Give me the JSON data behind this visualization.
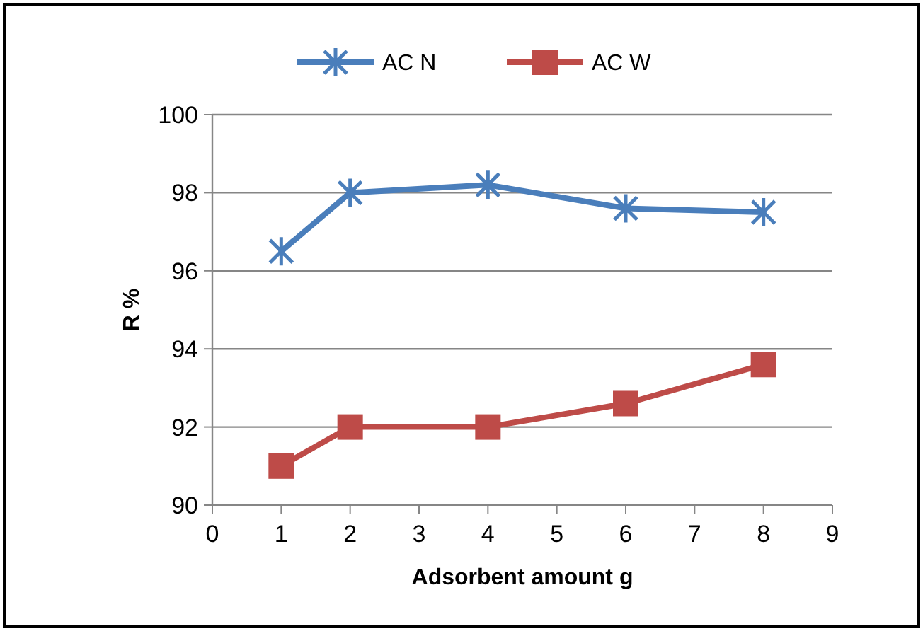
{
  "chart_data": {
    "type": "line",
    "x": [
      1,
      2,
      4,
      6,
      8
    ],
    "xlabel": "Adsorbent amount g",
    "ylabel": "R %",
    "xlim": [
      0,
      9
    ],
    "xticks": [
      0,
      1,
      2,
      3,
      4,
      5,
      6,
      7,
      8,
      9
    ],
    "ylim": [
      90,
      100
    ],
    "yticks": [
      90,
      92,
      94,
      96,
      98,
      100
    ],
    "grid": "y",
    "legend": "top",
    "series": [
      {
        "name": "AC N",
        "color": "#4a7ebb",
        "marker": "cross",
        "values": [
          96.5,
          98.0,
          98.2,
          97.6,
          97.5
        ]
      },
      {
        "name": "AC W",
        "color": "#be4b48",
        "marker": "square",
        "values": [
          91.0,
          92.0,
          92.0,
          92.6,
          93.6
        ]
      }
    ]
  }
}
